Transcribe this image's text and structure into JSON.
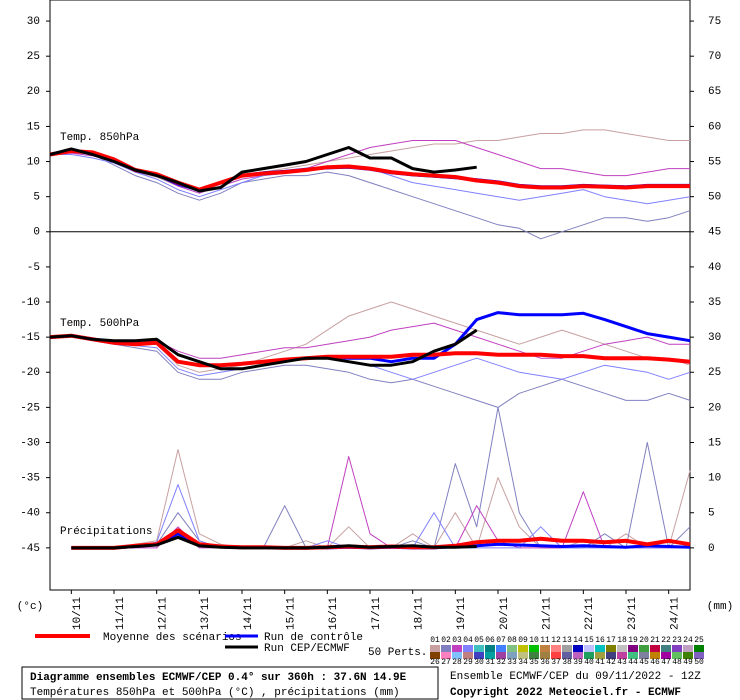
{
  "chart_data": {
    "type": "line",
    "x": [
      0,
      12,
      24,
      36,
      48,
      60,
      72,
      84,
      96,
      108,
      120,
      132,
      144,
      156,
      168,
      180,
      192,
      204,
      216,
      228,
      240,
      252,
      264,
      276,
      288,
      300,
      312,
      324,
      336,
      348,
      360
    ],
    "xlim": [
      0,
      360
    ],
    "xticks": [
      {
        "value": 12,
        "label": "10/11"
      },
      {
        "value": 36,
        "label": "11/11"
      },
      {
        "value": 60,
        "label": "12/11"
      },
      {
        "value": 84,
        "label": "13/11"
      },
      {
        "value": 108,
        "label": "14/11"
      },
      {
        "value": 132,
        "label": "15/11"
      },
      {
        "value": 156,
        "label": "16/11"
      },
      {
        "value": 180,
        "label": "17/11"
      },
      {
        "value": 204,
        "label": "18/11"
      },
      {
        "value": 228,
        "label": "19/11"
      },
      {
        "value": 252,
        "label": "20/11"
      },
      {
        "value": 276,
        "label": "21/11"
      },
      {
        "value": 300,
        "label": "22/11"
      },
      {
        "value": 324,
        "label": "23/11"
      },
      {
        "value": 348,
        "label": "24/11"
      }
    ],
    "ylim": [
      -51,
      33
    ],
    "yticks": [
      -45,
      -40,
      -35,
      -30,
      -25,
      -20,
      -15,
      -10,
      -5,
      0,
      5,
      10,
      15,
      20,
      25,
      30
    ],
    "y2lim": [
      -6,
      78
    ],
    "y2ticks": [
      0,
      5,
      10,
      15,
      20,
      25,
      30,
      35,
      40,
      45,
      50,
      55,
      60,
      65,
      70,
      75
    ],
    "ylabel": "(°c)",
    "y2label": "(mm)",
    "divider": 0,
    "legend": [
      {
        "name": "Moyenne des scénarios",
        "color": "#ff0000",
        "line_width": 4
      },
      {
        "name": "Run de contrôle",
        "color": "#0000ff",
        "line_width": 3
      },
      {
        "name": "Run CEP/ECMWF",
        "color": "#000000",
        "line_width": 3
      }
    ],
    "members_label": "50 Perts.",
    "members": [
      {
        "name": "01",
        "color": "#c8a0a0"
      },
      {
        "name": "02",
        "color": "#8080c0"
      },
      {
        "name": "03",
        "color": "#c040c0"
      },
      {
        "name": "04",
        "color": "#8080ff"
      },
      {
        "name": "05",
        "color": "#40c0c0"
      },
      {
        "name": "06",
        "color": "#008080"
      },
      {
        "name": "07",
        "color": "#4080ff"
      },
      {
        "name": "08",
        "color": "#80c080"
      },
      {
        "name": "09",
        "color": "#c0c000"
      },
      {
        "name": "10",
        "color": "#00c000"
      },
      {
        "name": "11",
        "color": "#c08040"
      },
      {
        "name": "12",
        "color": "#ff8080"
      },
      {
        "name": "13",
        "color": "#a0a0a0"
      },
      {
        "name": "14",
        "color": "#0000c0"
      },
      {
        "name": "15",
        "color": "#c0c0ff"
      },
      {
        "name": "16",
        "color": "#00c0c0"
      },
      {
        "name": "17",
        "color": "#808000"
      },
      {
        "name": "18",
        "color": "#c0c0c0"
      },
      {
        "name": "19",
        "color": "#800080"
      },
      {
        "name": "20",
        "color": "#40a040"
      },
      {
        "name": "21",
        "color": "#c00040"
      },
      {
        "name": "22",
        "color": "#408080"
      },
      {
        "name": "23",
        "color": "#8040c0"
      },
      {
        "name": "24",
        "color": "#c0a0c0"
      },
      {
        "name": "25",
        "color": "#008000"
      },
      {
        "name": "26",
        "color": "#804000"
      },
      {
        "name": "27",
        "color": "#ff80c0"
      },
      {
        "name": "28",
        "color": "#80c0ff"
      },
      {
        "name": "29",
        "color": "#c08080"
      },
      {
        "name": "30",
        "color": "#4040c0"
      },
      {
        "name": "31",
        "color": "#00a0a0"
      },
      {
        "name": "32",
        "color": "#a040a0"
      },
      {
        "name": "33",
        "color": "#80a0c0"
      },
      {
        "name": "34",
        "color": "#c0c080"
      },
      {
        "name": "35",
        "color": "#408040"
      },
      {
        "name": "36",
        "color": "#a08040"
      },
      {
        "name": "37",
        "color": "#ff4040"
      },
      {
        "name": "38",
        "color": "#6060a0"
      },
      {
        "name": "39",
        "color": "#c060c0"
      },
      {
        "name": "40",
        "color": "#20a060"
      },
      {
        "name": "41",
        "color": "#a0a040"
      },
      {
        "name": "42",
        "color": "#404080"
      },
      {
        "name": "43",
        "color": "#c040a0"
      },
      {
        "name": "44",
        "color": "#40c080"
      },
      {
        "name": "45",
        "color": "#8080a0"
      },
      {
        "name": "46",
        "color": "#c08000"
      },
      {
        "name": "47",
        "color": "#a000a0"
      },
      {
        "name": "48",
        "color": "#60c060"
      },
      {
        "name": "49",
        "color": "#408000"
      },
      {
        "name": "50",
        "color": "#8060c0"
      }
    ],
    "panels": [
      {
        "label": "Temp. 850hPa",
        "axis": "y",
        "mean": [
          11,
          11.5,
          11.3,
          10.3,
          8.8,
          8.2,
          7,
          6,
          7,
          8,
          8.3,
          8.5,
          8.8,
          9.2,
          9.3,
          9,
          8.5,
          8.2,
          8,
          7.8,
          7.3,
          7,
          6.5,
          6.3,
          6.3,
          6.5,
          6.4,
          6.3,
          6.5,
          6.5,
          6.5
        ],
        "control": [
          11,
          11.5,
          11.2,
          10.2,
          8.7,
          8.1,
          6.8,
          5.9,
          7,
          8,
          8.4,
          8.6,
          8.9,
          9.1,
          9.2,
          8.9,
          8.4,
          8.1,
          7.9,
          7.7,
          7.4,
          7.1,
          6.6,
          6.4,
          6.4,
          6.6,
          6.5,
          6.4,
          6.6,
          6.6,
          6.6
        ],
        "cep": [
          11,
          11.8,
          11,
          10,
          8.8,
          8,
          7,
          5.8,
          6.3,
          8.5,
          9,
          9.5,
          10,
          11,
          12,
          10.5,
          10.5,
          9,
          8.5,
          8.8,
          9.2,
          null,
          null,
          null,
          null,
          null,
          null,
          null,
          null,
          null,
          null
        ],
        "members": [
          [
            11,
            11.3,
            11,
            10,
            8.5,
            7.8,
            6.5,
            6,
            7,
            8,
            8.5,
            9,
            9.5,
            10,
            10.5,
            11,
            11.5,
            12,
            12.5,
            12.5,
            13,
            13,
            13.5,
            14,
            14,
            14.5,
            14.5,
            14,
            13.5,
            13,
            13
          ],
          [
            11,
            11.5,
            11,
            9.5,
            8,
            7,
            5.5,
            4.5,
            5.5,
            7,
            7.5,
            8,
            8,
            8.5,
            8,
            7,
            6,
            5,
            4,
            3,
            2,
            1,
            0.5,
            -1,
            0,
            1,
            2,
            2,
            1.5,
            2,
            3
          ],
          [
            11,
            11.2,
            10.8,
            10,
            8.8,
            8,
            6.5,
            5.5,
            6.5,
            7.5,
            8,
            8.5,
            9,
            10,
            11,
            12,
            12.5,
            13,
            13,
            13,
            12,
            11,
            10,
            9,
            9,
            8.5,
            8,
            8,
            8.5,
            9,
            9
          ],
          [
            11,
            11,
            10.5,
            9.8,
            8.5,
            7.5,
            6,
            5,
            6,
            7,
            8,
            8.3,
            8.7,
            9,
            9.2,
            9,
            8,
            7,
            6.5,
            6,
            5.5,
            5,
            4.5,
            5,
            5.5,
            6,
            5,
            4.5,
            4,
            4.5,
            5
          ]
        ]
      },
      {
        "label": "Temp. 500hPa",
        "axis": "y",
        "mean": [
          -15,
          -14.8,
          -15.3,
          -15.8,
          -16,
          -15.8,
          -18.5,
          -19,
          -19,
          -18.8,
          -18.5,
          -18.2,
          -18,
          -17.8,
          -17.8,
          -17.8,
          -17.8,
          -17.5,
          -17.5,
          -17.3,
          -17.3,
          -17.5,
          -17.5,
          -17.5,
          -17.7,
          -17.7,
          -18,
          -18,
          -18,
          -18.2,
          -18.5
        ],
        "control": [
          -15,
          -14.8,
          -15.3,
          -15.8,
          -16,
          -15.8,
          -18.5,
          -19,
          -19,
          -18.8,
          -18.5,
          -18.2,
          -18,
          -17.8,
          -18,
          -18,
          -18.5,
          -18,
          -18,
          -16,
          -12.5,
          -11.5,
          -11.8,
          -11.8,
          -11.8,
          -11.6,
          -12.5,
          -13.5,
          -14.5,
          -15,
          -15.5
        ],
        "cep": [
          -15,
          -14.8,
          -15.3,
          -15.5,
          -15.5,
          -15.3,
          -17.5,
          -18.5,
          -19.5,
          -19.5,
          -19,
          -18.5,
          -18,
          -18,
          -18.5,
          -19,
          -19,
          -18.5,
          -17,
          -16,
          -14,
          null,
          null,
          null,
          null,
          null,
          null,
          null,
          null,
          null,
          null
        ],
        "members": [
          [
            -15,
            -14.8,
            -15.2,
            -15.5,
            -16,
            -16,
            -19,
            -20,
            -19.5,
            -19,
            -18,
            -17,
            -16,
            -14,
            -12,
            -11,
            -10,
            -11,
            -12,
            -13,
            -14,
            -15,
            -16,
            -15,
            -14,
            -15,
            -16,
            -17,
            -18,
            -18,
            -19
          ],
          [
            -15,
            -15,
            -15.5,
            -16,
            -16.5,
            -17,
            -20,
            -21,
            -21,
            -20,
            -19.5,
            -19,
            -19,
            -19.5,
            -20,
            -21,
            -21.5,
            -21,
            -22,
            -23,
            -24,
            -25,
            -23,
            -22,
            -21,
            -22,
            -23,
            -24,
            -24,
            -23,
            -24
          ],
          [
            -15,
            -14.7,
            -15.1,
            -15.6,
            -15.8,
            -15.5,
            -17,
            -18,
            -18,
            -17.5,
            -17,
            -16.5,
            -16.5,
            -16,
            -15.5,
            -15,
            -14,
            -13.5,
            -13,
            -14,
            -15,
            -16,
            -17,
            -18,
            -18,
            -17,
            -16,
            -15.5,
            -15,
            -16,
            -16
          ],
          [
            -15,
            -14.9,
            -15.4,
            -15.9,
            -16.2,
            -16.5,
            -19.5,
            -20.5,
            -20,
            -19.5,
            -19,
            -18.5,
            -18,
            -18,
            -18.5,
            -19,
            -20,
            -21,
            -20,
            -19,
            -18,
            -19,
            -20,
            -20.5,
            -21,
            -20,
            -19,
            -19.5,
            -20,
            -21,
            -20
          ]
        ]
      },
      {
        "label": "Précipitations",
        "axis": "y2",
        "mean": [
          null,
          0,
          0,
          0,
          0.3,
          0.5,
          2.5,
          0.5,
          0.2,
          0.1,
          0.1,
          0,
          0,
          0.1,
          0.2,
          0.1,
          0.2,
          0.1,
          0.1,
          0.3,
          0.8,
          1,
          1,
          1.3,
          1,
          1,
          0.8,
          1,
          0.5,
          1,
          0.5
        ],
        "control": [
          null,
          0,
          0,
          0,
          0.2,
          0.5,
          2,
          0.4,
          0.2,
          0.1,
          0.1,
          0,
          0,
          0,
          0.1,
          0,
          0.1,
          0,
          0,
          0.2,
          0.3,
          0.5,
          0.4,
          0.3,
          0.2,
          0.3,
          0.2,
          0.1,
          0.3,
          0.2,
          0.1
        ],
        "cep": [
          null,
          0,
          0,
          0,
          0.2,
          0.4,
          1.5,
          0.3,
          0.1,
          0,
          0,
          0,
          0,
          0.1,
          0.3,
          0.1,
          0.2,
          0.3,
          0.1,
          0.1,
          0.2,
          null,
          null,
          null,
          null,
          null,
          null,
          null,
          null,
          null,
          null
        ],
        "members": [
          [
            null,
            0,
            0,
            0,
            0.5,
            1,
            14,
            2,
            0.5,
            0,
            0,
            0,
            1,
            0,
            3,
            0,
            0,
            2,
            0,
            5,
            0,
            10,
            3,
            0,
            0,
            1,
            0,
            2,
            0,
            0,
            11
          ],
          [
            null,
            0,
            0,
            0,
            0,
            0.5,
            5,
            1,
            0,
            0,
            0,
            6,
            0,
            0,
            0,
            0,
            0,
            1,
            0,
            12,
            3,
            20,
            5,
            0,
            0,
            0,
            2,
            0,
            15,
            0,
            3
          ],
          [
            null,
            0,
            0,
            0,
            0,
            0,
            3,
            0,
            0,
            0,
            0,
            0,
            0,
            0,
            13,
            2,
            0,
            0,
            0,
            0,
            6,
            1,
            0,
            0,
            0,
            8,
            0,
            0,
            0,
            0,
            0
          ],
          [
            null,
            0,
            0,
            0,
            0.3,
            0.8,
            9,
            1,
            0,
            0,
            0,
            0,
            0,
            1,
            0,
            0,
            0,
            0,
            5,
            0,
            0,
            0,
            0,
            3,
            0,
            0,
            0,
            0,
            0,
            0,
            0
          ]
        ]
      }
    ],
    "footer_title": "Diagramme ensembles ECMWF/CEP 0.4° sur 360h : 37.6N 14.9E",
    "footer_subtitle": "Températures 850hPa et 500hPa (°C) , précipitations (mm)",
    "run_info": "Ensemble ECMWF/CEP du 09/11/2022 - 12Z",
    "copyright": "Copyright 2022 Meteociel.fr - ECMWF"
  }
}
